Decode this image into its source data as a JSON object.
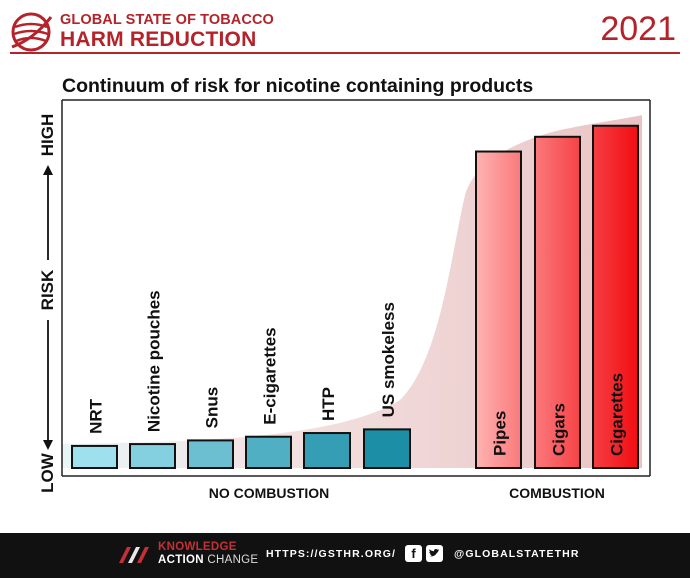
{
  "header": {
    "brand_line1": "GLOBAL STATE OF TOBACCO",
    "brand_line2": "HARM REDUCTION",
    "year": "2021",
    "logo_icon": "globe-logo-icon",
    "accent_color": "#b4232a"
  },
  "chart_data": {
    "type": "bar",
    "title": "Continuum of risk for nicotine containing products",
    "ylabel_parts": [
      "LOW",
      "RISK",
      "HIGH"
    ],
    "categories": [
      "NRT",
      "Nicotine pouches",
      "Snus",
      "E-cigarettes",
      "HTP",
      "US smokeless",
      "Pipes",
      "Cigars",
      "Cigarettes"
    ],
    "values": [
      6,
      6.5,
      7.5,
      8.5,
      9.5,
      10.5,
      86,
      90,
      93
    ],
    "ylim": [
      0,
      100
    ],
    "groups": [
      {
        "label": "NO COMBUSTION",
        "members": [
          "NRT",
          "Nicotine pouches",
          "Snus",
          "E-cigarettes",
          "HTP",
          "US smokeless"
        ]
      },
      {
        "label": "COMBUSTION",
        "members": [
          "Pipes",
          "Cigars",
          "Cigarettes"
        ]
      }
    ],
    "colors": {
      "no_combustion_light": "#9fe0ee",
      "no_combustion_dark": "#1c8ea6",
      "combustion_light": "#ffb3b3",
      "combustion_dark": "#f10d12",
      "continuum_fill": "#e6bcbc"
    }
  },
  "footer": {
    "brand_knowledge": "KNOWLEDGE",
    "brand_action": "ACTION",
    "brand_change": "CHANGE",
    "url": "HTTPS://GSTHR.ORG/",
    "facebook_glyph": "f",
    "twitter_glyph": "t",
    "handle": "@GLOBALSTATETHR"
  }
}
